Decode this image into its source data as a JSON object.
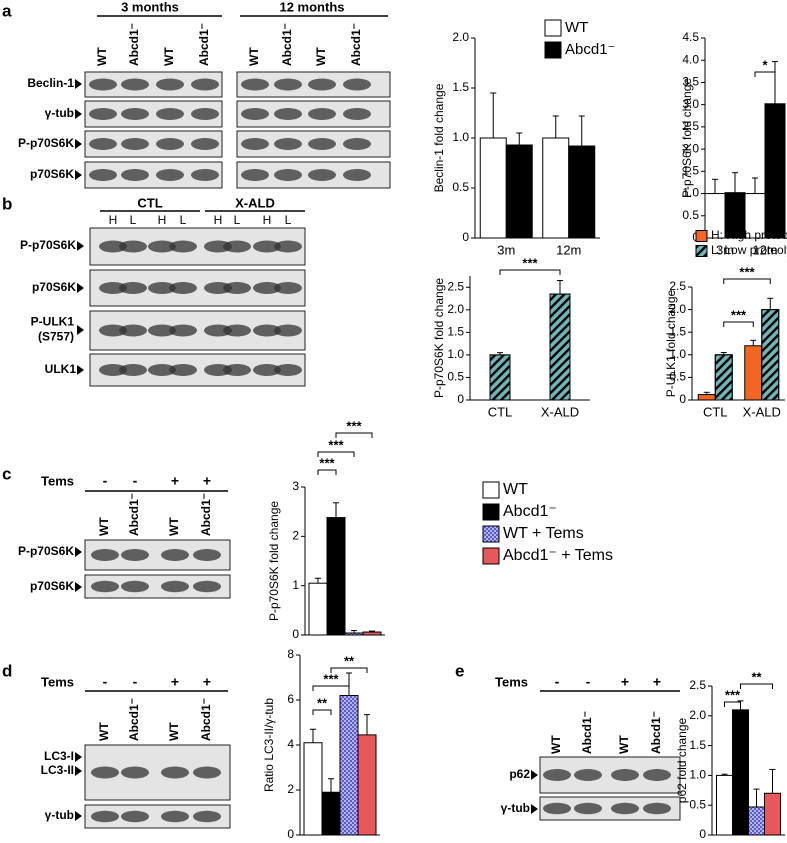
{
  "panel_labels": [
    "a",
    "b",
    "c",
    "d",
    "e"
  ],
  "blots": [
    {
      "headers": [
        "3 months",
        "12 months"
      ],
      "lanes": [
        "WT",
        "Abcd1⁻",
        "WT",
        "Abcd1⁻",
        "WT",
        "Abcd1⁻",
        "WT",
        "Abcd1⁻"
      ],
      "rows": [
        "Beclin-1",
        "γ-tub",
        "P-p70S6K",
        "p70S6K"
      ]
    },
    {
      "headers": [
        "CTL",
        "X-ALD"
      ],
      "lanes": [
        "H",
        "L",
        "H",
        "L",
        "H",
        "L",
        "H",
        "L"
      ],
      "rows": [
        "P-p70S6K",
        "p70S6K",
        [
          "P-ULK1",
          "(S757)"
        ],
        "ULK1"
      ]
    },
    {
      "treatment": "Tems",
      "signs": [
        "-",
        "-",
        "+",
        "+"
      ],
      "lanes": [
        "WT",
        "Abcd1⁻",
        "WT",
        "Abcd1⁻"
      ],
      "rows": [
        "P-p70S6K",
        "p70S6K"
      ]
    },
    {
      "treatment": "Tems",
      "signs": [
        "-",
        "-",
        "+",
        "+"
      ],
      "lanes": [
        "WT",
        "Abcd1⁻",
        "WT",
        "Abcd1⁻"
      ],
      "rows": [
        "LC3-I",
        "LC3-II",
        "γ-tub"
      ]
    },
    {
      "treatment": "Tems",
      "signs": [
        "-",
        "-",
        "+",
        "+"
      ],
      "lanes": [
        "WT",
        "Abcd1⁻",
        "WT",
        "Abcd1⁻"
      ],
      "rows": [
        "p62",
        "γ-tub"
      ]
    }
  ],
  "chart_data": [
    {
      "type": "bar",
      "ylabel": "Beclin-1 fold change",
      "categories": [
        "3m",
        "12m"
      ],
      "series": [
        {
          "name": "WT",
          "color": "#ffffff",
          "values": [
            1.0,
            1.0
          ],
          "errors": [
            0.45,
            0.22
          ]
        },
        {
          "name": "Abcd1⁻",
          "color": "#000000",
          "values": [
            0.93,
            0.92
          ],
          "errors": [
            0.12,
            0.3
          ]
        }
      ],
      "ylim": [
        0,
        2
      ],
      "yticks": [
        0,
        0.5,
        {
          "value": 1,
          "label": "1.0"
        },
        1.5,
        {
          "value": 2,
          "label": "2.0"
        }
      ]
    },
    {
      "type": "bar",
      "ylabel": "P-p70S6K fold change",
      "categories": [
        "3m",
        "12m"
      ],
      "series": [
        {
          "color": "#ffffff",
          "values": [
            1.0,
            1.0
          ],
          "errors": [
            0.32,
            0.35
          ]
        },
        {
          "color": "#000000",
          "values": [
            1.02,
            3.02
          ],
          "errors": [
            0.45,
            0.95
          ]
        }
      ],
      "ylim": [
        0,
        4.5
      ],
      "yticks": [
        0,
        0.5,
        {
          "value": 1,
          "label": "1.0"
        },
        1.5,
        {
          "value": 2,
          "label": "2.0"
        },
        2.5,
        {
          "value": 3,
          "label": "3.0"
        },
        3.5,
        {
          "value": 4,
          "label": "4.0"
        },
        4.5
      ],
      "annotations": [
        "*"
      ]
    },
    {
      "type": "bar",
      "ylabel": "P-p70S6K fold change",
      "categories": [
        "CTL",
        "X-ALD"
      ],
      "series": [
        {
          "color": "#6fb5b5",
          "hatch": "diagonal",
          "values": [
            1.0,
            2.35
          ],
          "errors": [
            0.05,
            0.3
          ]
        }
      ],
      "ylim": [
        0,
        2.75
      ],
      "yticks": [
        0,
        0.5,
        {
          "value": 1,
          "label": "1.0"
        },
        1.5,
        {
          "value": 2,
          "label": "2.0"
        },
        2.5
      ],
      "annotations": [
        "***"
      ]
    },
    {
      "type": "bar",
      "ylabel": "P-ULK1 fold change",
      "categories": [
        "CTL",
        "X-ALD"
      ],
      "series": [
        {
          "name": "H: High proteolysis",
          "color": "#f26522",
          "values": [
            0.12,
            1.2
          ],
          "errors": [
            0.05,
            0.12
          ]
        },
        {
          "name": "L: Low proteolysis",
          "color": "#6fb5b5",
          "hatch": "diagonal",
          "values": [
            1.0,
            2.0
          ],
          "errors": [
            0.05,
            0.25
          ]
        }
      ],
      "ylim": [
        0,
        2.5
      ],
      "yticks": [
        0,
        0.5,
        {
          "value": 1,
          "label": "1.0"
        },
        1.5,
        {
          "value": 2,
          "label": "2.0"
        },
        2.5
      ],
      "annotations": [
        "***",
        "***"
      ]
    },
    {
      "type": "bar",
      "ylabel": "P-p70S6K fold change",
      "series": [
        {
          "name": "WT",
          "color": "#ffffff",
          "values": [
            1.05
          ],
          "errors": [
            0.1
          ]
        },
        {
          "name": "Abcd1⁻",
          "color": "#000000",
          "values": [
            2.38
          ],
          "errors": [
            0.3
          ]
        },
        {
          "name": "WT + Tems",
          "color": "#5a5ad2",
          "hatch": "dots",
          "values": [
            0.04
          ],
          "errors": [
            0.05
          ]
        },
        {
          "name": "Abcd1⁻ + Tems",
          "color": "#e8585a",
          "values": [
            0.06
          ],
          "errors": [
            0.02
          ]
        }
      ],
      "ylim": [
        0,
        3
      ],
      "yticks": [
        0,
        1,
        2,
        3
      ],
      "annotations": [
        "***",
        "***",
        "***"
      ]
    },
    {
      "type": "bar",
      "ylabel": "Ratio LC3-II/γ-tub",
      "series": [
        {
          "color": "#ffffff",
          "values": [
            4.1
          ],
          "errors": [
            0.6
          ]
        },
        {
          "color": "#000000",
          "values": [
            1.9
          ],
          "errors": [
            0.6
          ]
        },
        {
          "color": "#5a5ad2",
          "hatch": "dots",
          "values": [
            6.2
          ],
          "errors": [
            1.0
          ]
        },
        {
          "color": "#e8585a",
          "values": [
            4.45
          ],
          "errors": [
            0.9
          ]
        }
      ],
      "ylim": [
        0,
        8
      ],
      "yticks": [
        0,
        2,
        4,
        6,
        8
      ],
      "annotations": [
        "**",
        "***",
        "**"
      ]
    },
    {
      "type": "bar",
      "ylabel": "p62 fold change",
      "series": [
        {
          "color": "#ffffff",
          "values": [
            1.0
          ],
          "errors": [
            0.02
          ]
        },
        {
          "color": "#000000",
          "values": [
            2.1
          ],
          "errors": [
            0.15
          ]
        },
        {
          "color": "#5a5ad2",
          "hatch": "dots",
          "values": [
            0.47
          ],
          "errors": [
            0.3
          ]
        },
        {
          "color": "#e8585a",
          "values": [
            0.7
          ],
          "errors": [
            0.4
          ]
        }
      ],
      "ylim": [
        0,
        2.5
      ],
      "yticks": [
        0,
        0.5,
        {
          "value": 1,
          "label": "1.0"
        },
        1.5,
        {
          "value": 2,
          "label": "2.0"
        },
        2.5
      ],
      "annotations": [
        "***",
        "**"
      ]
    }
  ]
}
